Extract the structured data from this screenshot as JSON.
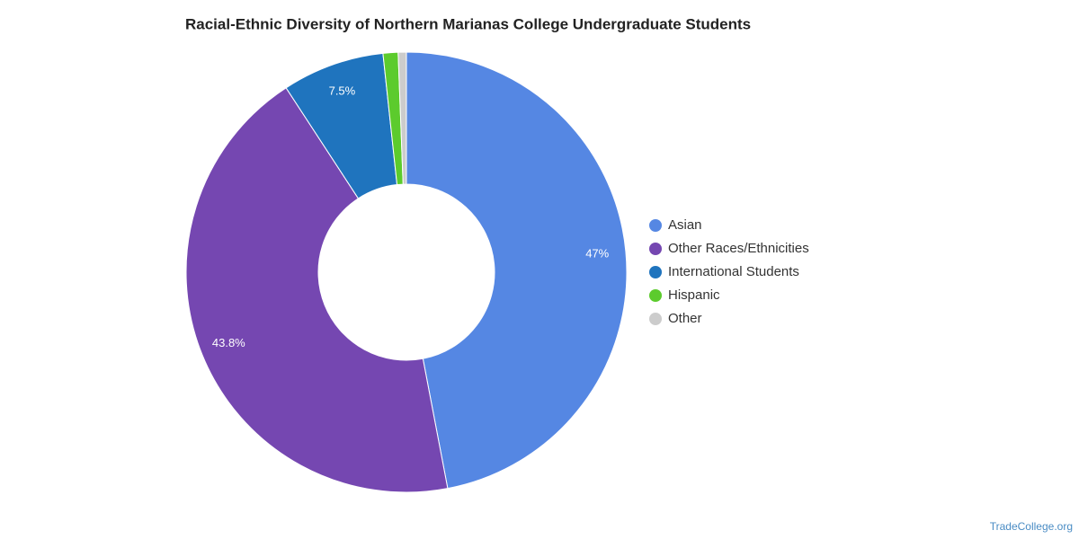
{
  "chart_data": {
    "type": "donut",
    "title": "Racial-Ethnic Diversity of Northern Marianas College Undergraduate Students",
    "categories": [
      "Asian",
      "Other Races/Ethnicities",
      "International Students",
      "Hispanic",
      "Other"
    ],
    "values": [
      47,
      43.8,
      7.5,
      1.1,
      0.6
    ],
    "value_labels": [
      "47%",
      "43.8%",
      "7.5%",
      null,
      null
    ],
    "colors": [
      "#5587e3",
      "#7547b1",
      "#1f74be",
      "#5ccb2d",
      "#cccccc"
    ],
    "legend": "right"
  },
  "footer": "TradeCollege.org"
}
